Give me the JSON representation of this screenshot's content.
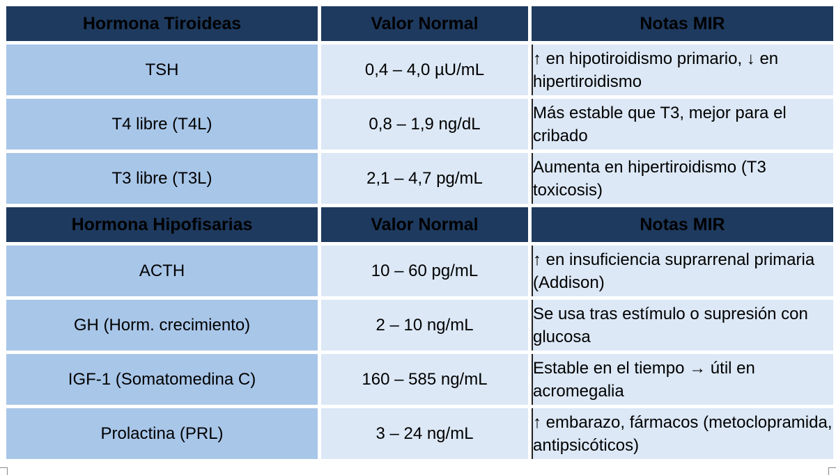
{
  "table": {
    "sections": [
      {
        "header": [
          "Hormona Tiroideas",
          "Valor Normal",
          "Notas MIR"
        ],
        "rows": [
          {
            "name": "TSH",
            "value": "0,4 – 4,0 µU/mL",
            "note": "↑ en hipotiroidismo primario, ↓ en hipertiroidismo"
          },
          {
            "name": "T4 libre (T4L)",
            "value": "0,8 – 1,9 ng/dL",
            "note": "Más estable que T3, mejor para el cribado"
          },
          {
            "name": "T3 libre (T3L)",
            "value": "2,1 – 4,7 pg/mL",
            "note": "Aumenta en hipertiroidismo (T3 toxicosis)"
          }
        ]
      },
      {
        "header": [
          "Hormona Hipofisarias",
          "Valor Normal",
          "Notas MIR"
        ],
        "rows": [
          {
            "name": "ACTH",
            "value": "10 – 60 pg/mL",
            "note": "↑ en insuficiencia suprarrenal primaria (Addison)"
          },
          {
            "name": "GH (Horm. crecimiento)",
            "value": "2 – 10 ng/mL",
            "note": "Se usa tras estímulo o supresión con glucosa"
          },
          {
            "name": "IGF-1 (Somatomedina C)",
            "value": "160 – 585 ng/mL",
            "note": "Estable en el tiempo → útil en acromegalia"
          },
          {
            "name": "Prolactina (PRL)",
            "value": "3 – 24 ng/mL",
            "note": "↑ embarazo, fármacos (metoclopramida, antipsicóticos)"
          }
        ]
      }
    ]
  },
  "colors": {
    "header_bg": "#1e3a5f",
    "name_cell_bg": "#a8c6e8",
    "value_cell_bg": "#dce8f6"
  }
}
